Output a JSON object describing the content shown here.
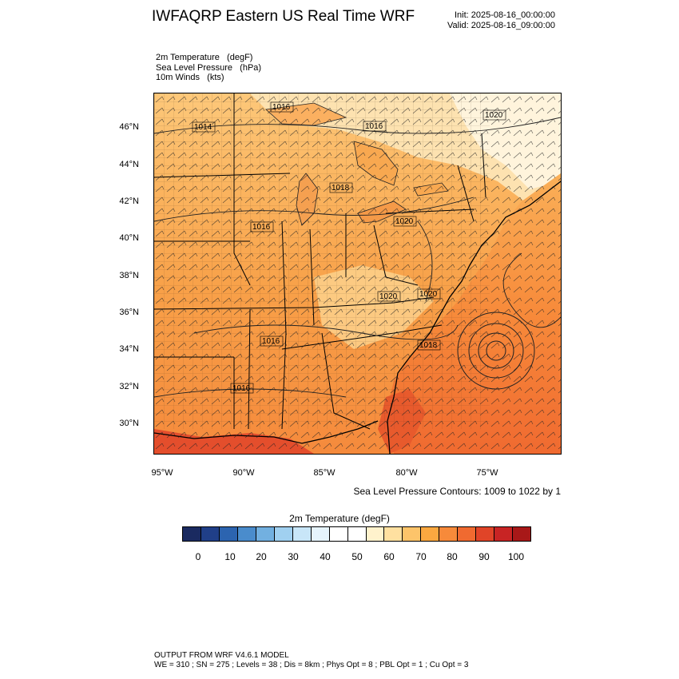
{
  "header": {
    "title": "IWFAQRP Eastern US Real Time WRF",
    "init": "Init: 2025-08-16_00:00:00",
    "valid": "Valid: 2025-08-16_09:00:00"
  },
  "fields": [
    "2m Temperature   (degF)",
    "Sea Level Pressure   (hPa)",
    "10m Winds   (kts)"
  ],
  "map": {
    "lat_ticks": [
      "46°N",
      "44°N",
      "42°N",
      "40°N",
      "38°N",
      "36°N",
      "34°N",
      "32°N",
      "30°N"
    ],
    "lon_ticks": [
      "95°W",
      "90°W",
      "85°W",
      "80°W",
      "75°W"
    ],
    "pressure_labels": [
      "1014",
      "1016",
      "1020",
      "1018",
      "1016",
      "1020",
      "1020",
      "1020",
      "1016",
      "1018",
      "1016",
      "1016"
    ],
    "contour_note": "Sea Level Pressure Contours: 1009 to 1022 by 1"
  },
  "colorbar": {
    "title": "2m Temperature  (degF)",
    "colors": [
      "#1a2a60",
      "#203f88",
      "#2c64b0",
      "#4a8ccc",
      "#72b0e0",
      "#a0d0f0",
      "#c8e6f8",
      "#e6f4fc",
      "#ffffff",
      "#ffffff",
      "#fff2cc",
      "#ffe0a0",
      "#fdc46a",
      "#fba840",
      "#f78a3a",
      "#f06a30",
      "#e04428",
      "#c82424",
      "#a81818"
    ],
    "labels": [
      "0",
      "10",
      "20",
      "30",
      "40",
      "50",
      "60",
      "70",
      "80",
      "90",
      "100"
    ]
  },
  "footer": {
    "line1": "OUTPUT FROM WRF V4.6.1 MODEL",
    "line2": "WE = 310 ; SN = 275 ; Levels = 38 ; Dis = 8km ; Phys Opt = 8 ; PBL Opt = 1 ; Cu Opt = 3"
  }
}
